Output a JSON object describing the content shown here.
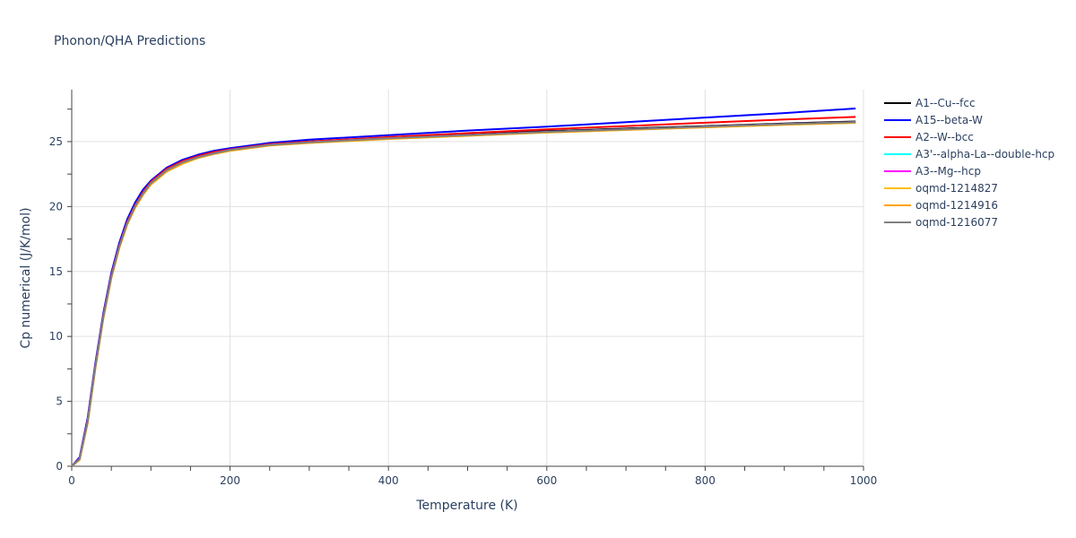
{
  "chart_data": {
    "type": "line",
    "title": "Phonon/QHA Predictions",
    "xlabel": "Temperature (K)",
    "ylabel": "Cp numerical (J/K/mol)",
    "xlim": [
      0,
      1000
    ],
    "ylim": [
      0,
      29
    ],
    "xticks": [
      0,
      200,
      400,
      600,
      800,
      1000
    ],
    "yticks": [
      0,
      5,
      10,
      15,
      20,
      25
    ],
    "grid": true,
    "legend_position": "right",
    "series": [
      {
        "name": "A1--Cu--fcc",
        "color": "#000000",
        "x": [
          0,
          10,
          20,
          30,
          40,
          50,
          60,
          70,
          80,
          90,
          100,
          120,
          140,
          160,
          180,
          200,
          250,
          300,
          400,
          500,
          600,
          700,
          800,
          900,
          990
        ],
        "y": [
          0,
          0.6,
          3.5,
          7.8,
          11.6,
          14.7,
          17.0,
          18.8,
          20.1,
          21.1,
          21.9,
          22.9,
          23.5,
          23.9,
          24.2,
          24.4,
          24.8,
          25.0,
          25.3,
          25.55,
          25.8,
          26.0,
          26.2,
          26.4,
          26.55
        ]
      },
      {
        "name": "A15--beta-W",
        "color": "#0000ff",
        "x": [
          0,
          10,
          20,
          30,
          40,
          50,
          60,
          70,
          80,
          90,
          100,
          120,
          140,
          160,
          180,
          200,
          250,
          300,
          400,
          500,
          600,
          700,
          800,
          900,
          990
        ],
        "y": [
          0,
          0.7,
          3.7,
          8.0,
          11.8,
          14.9,
          17.2,
          19.0,
          20.3,
          21.3,
          22.0,
          23.0,
          23.6,
          24.0,
          24.3,
          24.5,
          24.9,
          25.15,
          25.5,
          25.85,
          26.15,
          26.5,
          26.85,
          27.2,
          27.55
        ]
      },
      {
        "name": "A2--W--bcc",
        "color": "#ff0000",
        "x": [
          0,
          10,
          20,
          30,
          40,
          50,
          60,
          70,
          80,
          90,
          100,
          120,
          140,
          160,
          180,
          200,
          250,
          300,
          400,
          500,
          600,
          700,
          800,
          900,
          990
        ],
        "y": [
          0,
          0.6,
          3.5,
          7.8,
          11.6,
          14.7,
          17.0,
          18.8,
          20.1,
          21.1,
          21.9,
          22.9,
          23.5,
          23.9,
          24.2,
          24.4,
          24.8,
          25.0,
          25.35,
          25.65,
          25.95,
          26.2,
          26.45,
          26.7,
          26.9
        ]
      },
      {
        "name": "A3'--alpha-La--double-hcp",
        "color": "#00ffff",
        "x": [
          0,
          10,
          20,
          30,
          40,
          50,
          60,
          70,
          80,
          90,
          100,
          120,
          140,
          160,
          180,
          200,
          250,
          300,
          400,
          500,
          600,
          700,
          800,
          900,
          990
        ],
        "y": [
          0,
          0.55,
          3.4,
          7.7,
          11.5,
          14.6,
          16.9,
          18.7,
          20.0,
          21.0,
          21.8,
          22.8,
          23.4,
          23.8,
          24.1,
          24.35,
          24.75,
          24.95,
          25.25,
          25.5,
          25.75,
          25.95,
          26.15,
          26.35,
          26.5
        ]
      },
      {
        "name": "A3--Mg--hcp",
        "color": "#ff00ff",
        "x": [
          0,
          10,
          20,
          30,
          40,
          50,
          60,
          70,
          80,
          90,
          100,
          120,
          140,
          160,
          180,
          200,
          250,
          300,
          400,
          500,
          600,
          700,
          800,
          900,
          990
        ],
        "y": [
          0,
          0.55,
          3.4,
          7.7,
          11.5,
          14.6,
          16.9,
          18.7,
          20.0,
          21.0,
          21.8,
          22.8,
          23.4,
          23.8,
          24.1,
          24.35,
          24.75,
          24.95,
          25.25,
          25.5,
          25.75,
          25.95,
          26.15,
          26.35,
          26.5
        ]
      },
      {
        "name": "oqmd-1214827",
        "color": "#ffbf00",
        "x": [
          0,
          10,
          20,
          30,
          40,
          50,
          60,
          70,
          80,
          90,
          100,
          120,
          140,
          160,
          180,
          200,
          250,
          300,
          400,
          500,
          600,
          700,
          800,
          900,
          990
        ],
        "y": [
          0,
          0.5,
          3.3,
          7.6,
          11.4,
          14.5,
          16.8,
          18.6,
          19.9,
          20.9,
          21.7,
          22.7,
          23.3,
          23.75,
          24.05,
          24.3,
          24.7,
          24.9,
          25.2,
          25.45,
          25.7,
          25.9,
          26.1,
          26.3,
          26.45
        ]
      },
      {
        "name": "oqmd-1214916",
        "color": "#ffa500",
        "x": [
          0,
          10,
          20,
          30,
          40,
          50,
          60,
          70,
          80,
          90,
          100,
          120,
          140,
          160,
          180,
          200,
          250,
          300,
          400,
          500,
          600,
          700,
          800,
          900,
          990
        ],
        "y": [
          0,
          0.5,
          3.3,
          7.6,
          11.4,
          14.5,
          16.8,
          18.6,
          19.9,
          20.9,
          21.7,
          22.7,
          23.3,
          23.75,
          24.05,
          24.3,
          24.7,
          24.9,
          25.2,
          25.45,
          25.7,
          25.9,
          26.1,
          26.3,
          26.45
        ]
      },
      {
        "name": "oqmd-1216077",
        "color": "#808080",
        "x": [
          0,
          10,
          20,
          30,
          40,
          50,
          60,
          70,
          80,
          90,
          100,
          120,
          140,
          160,
          180,
          200,
          250,
          300,
          400,
          500,
          600,
          700,
          800,
          900,
          990
        ],
        "y": [
          0,
          0.55,
          3.4,
          7.7,
          11.5,
          14.6,
          16.9,
          18.7,
          20.0,
          21.0,
          21.8,
          22.8,
          23.4,
          23.8,
          24.1,
          24.35,
          24.75,
          24.95,
          25.25,
          25.5,
          25.75,
          25.95,
          26.15,
          26.35,
          26.5
        ]
      }
    ]
  }
}
